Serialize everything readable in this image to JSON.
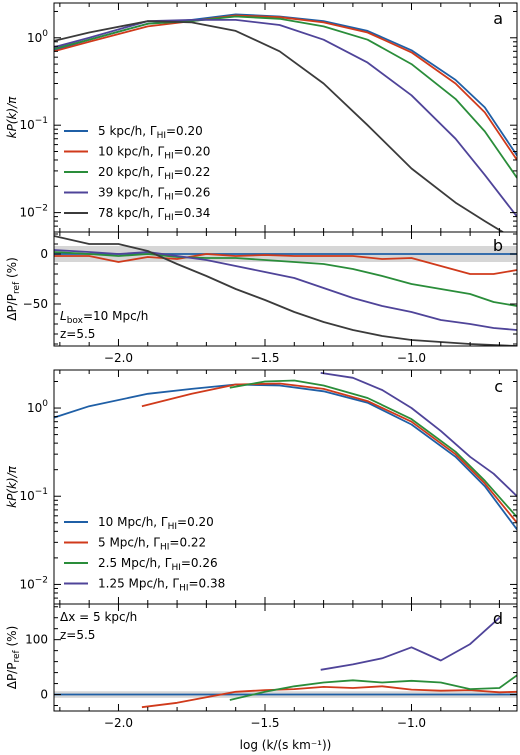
{
  "chart_data": [
    {
      "panel": "a",
      "type": "line",
      "ylabel": "kP(k)/π",
      "yscale": "log",
      "ylim": [
        0.006,
        2.5
      ],
      "xlim": [
        -2.22,
        -0.64
      ],
      "legend_loc": "lower-left",
      "series": [
        {
          "name": "5 kpc/h, ΓHI=0.20",
          "color": "#1f5fa6",
          "x": [
            -2.22,
            -2.1,
            -1.9,
            -1.75,
            -1.6,
            -1.45,
            -1.3,
            -1.15,
            -1.0,
            -0.85,
            -0.75,
            -0.64
          ],
          "y": [
            0.72,
            0.95,
            1.45,
            1.6,
            1.85,
            1.75,
            1.55,
            1.2,
            0.72,
            0.33,
            0.16,
            0.045
          ]
        },
        {
          "name": "10 kpc/h, ΓHI=0.20",
          "color": "#d03a1b",
          "x": [
            -2.22,
            -2.1,
            -1.9,
            -1.75,
            -1.6,
            -1.45,
            -1.3,
            -1.15,
            -1.0,
            -0.85,
            -0.75,
            -0.64
          ],
          "y": [
            0.7,
            0.9,
            1.35,
            1.55,
            1.8,
            1.72,
            1.5,
            1.15,
            0.68,
            0.3,
            0.14,
            0.04
          ]
        },
        {
          "name": "20 kpc/h, ΓHI=0.22",
          "color": "#2a8d3a",
          "x": [
            -2.22,
            -2.1,
            -1.9,
            -1.75,
            -1.6,
            -1.45,
            -1.3,
            -1.15,
            -1.0,
            -0.85,
            -0.75,
            -0.64
          ],
          "y": [
            0.75,
            0.95,
            1.45,
            1.55,
            1.75,
            1.65,
            1.35,
            0.95,
            0.5,
            0.2,
            0.085,
            0.025
          ]
        },
        {
          "name": "39 kpc/h, ΓHI=0.26",
          "color": "#4f4499",
          "x": [
            -2.22,
            -2.1,
            -1.9,
            -1.75,
            -1.6,
            -1.45,
            -1.3,
            -1.15,
            -1.0,
            -0.85,
            -0.75,
            -0.64
          ],
          "y": [
            0.78,
            1.0,
            1.55,
            1.6,
            1.6,
            1.4,
            0.95,
            0.52,
            0.22,
            0.07,
            0.027,
            0.009
          ]
        },
        {
          "name": "78 kpc/h, ΓHI=0.34",
          "color": "#3b3b3b",
          "x": [
            -2.22,
            -2.1,
            -1.9,
            -1.75,
            -1.6,
            -1.45,
            -1.3,
            -1.15,
            -1.0,
            -0.85,
            -0.75,
            -0.67
          ],
          "y": [
            0.92,
            1.15,
            1.55,
            1.5,
            1.2,
            0.7,
            0.3,
            0.1,
            0.032,
            0.013,
            0.008,
            0.0055
          ]
        }
      ]
    },
    {
      "panel": "b",
      "type": "line",
      "ylabel": "ΔP/Pref (%)",
      "ylim": [
        -92,
        22
      ],
      "yticks": [
        0,
        -50
      ],
      "xlim": [
        -2.22,
        -0.64
      ],
      "band": [
        -8,
        8
      ],
      "annotations": [
        "Lbox=10 Mpc/h",
        "z=5.5"
      ],
      "series": [
        {
          "color": "#1f5fa6",
          "x": [
            -2.22,
            -0.64
          ],
          "y": [
            0,
            0
          ]
        },
        {
          "color": "#d03a1b",
          "x": [
            -2.22,
            -2.1,
            -2.0,
            -1.9,
            -1.8,
            -1.7,
            -1.6,
            -1.5,
            -1.4,
            -1.3,
            -1.2,
            -1.1,
            -1.0,
            -0.9,
            -0.8,
            -0.72,
            -0.64
          ],
          "y": [
            -2,
            -2,
            -8,
            -3,
            -5,
            0,
            -2,
            -1,
            -2,
            -2,
            -2,
            -5,
            -4,
            -12,
            -20,
            -20,
            -16
          ]
        },
        {
          "color": "#2a8d3a",
          "x": [
            -2.22,
            -2.1,
            -2.0,
            -1.9,
            -1.8,
            -1.7,
            -1.6,
            -1.5,
            -1.4,
            -1.3,
            -1.2,
            -1.1,
            -1.0,
            -0.9,
            -0.8,
            -0.72,
            -0.64
          ],
          "y": [
            2,
            0,
            -2,
            0,
            -3,
            -4,
            -4,
            -6,
            -8,
            -10,
            -15,
            -22,
            -30,
            -35,
            -40,
            -48,
            -52
          ]
        },
        {
          "color": "#4f4499",
          "x": [
            -2.22,
            -2.1,
            -2.0,
            -1.9,
            -1.8,
            -1.7,
            -1.6,
            -1.5,
            -1.4,
            -1.3,
            -1.2,
            -1.1,
            -1.0,
            -0.9,
            -0.8,
            -0.72,
            -0.64
          ],
          "y": [
            4,
            2,
            0,
            2,
            -2,
            -6,
            -12,
            -18,
            -24,
            -34,
            -44,
            -52,
            -58,
            -66,
            -70,
            -74,
            -76
          ]
        },
        {
          "color": "#3b3b3b",
          "x": [
            -2.22,
            -2.1,
            -2.0,
            -1.9,
            -1.8,
            -1.7,
            -1.6,
            -1.5,
            -1.4,
            -1.3,
            -1.2,
            -1.1,
            -1.0,
            -0.9,
            -0.8,
            -0.72,
            -0.64
          ],
          "y": [
            18,
            10,
            10,
            3,
            -10,
            -22,
            -35,
            -46,
            -58,
            -68,
            -76,
            -82,
            -86,
            -88,
            -90,
            -91,
            -92
          ]
        }
      ]
    },
    {
      "panel": "c",
      "type": "line",
      "ylabel": "kP(k)/π",
      "yscale": "log",
      "ylim": [
        0.006,
        2.7
      ],
      "xlim": [
        -2.22,
        -0.64
      ],
      "legend_loc": "lower-left",
      "series": [
        {
          "name": "10 Mpc/h, ΓHI=0.20",
          "color": "#1f5fa6",
          "x": [
            -2.22,
            -2.1,
            -1.9,
            -1.75,
            -1.6,
            -1.45,
            -1.3,
            -1.15,
            -1.0,
            -0.85,
            -0.75,
            -0.64
          ],
          "y": [
            0.78,
            1.05,
            1.45,
            1.65,
            1.85,
            1.8,
            1.55,
            1.15,
            0.65,
            0.28,
            0.13,
            0.042
          ]
        },
        {
          "name": "5 Mpc/h, ΓHI=0.22",
          "color": "#d03a1b",
          "x": [
            -1.92,
            -1.75,
            -1.6,
            -1.45,
            -1.3,
            -1.15,
            -1.0,
            -0.85,
            -0.75,
            -0.64
          ],
          "y": [
            1.05,
            1.45,
            1.85,
            1.9,
            1.65,
            1.2,
            0.7,
            0.3,
            0.14,
            0.05
          ]
        },
        {
          "name": "2.5 Mpc/h, ΓHI=0.26",
          "color": "#2a8d3a",
          "x": [
            -1.62,
            -1.5,
            -1.4,
            -1.3,
            -1.15,
            -1.0,
            -0.85,
            -0.75,
            -0.64
          ],
          "y": [
            1.7,
            2.0,
            2.05,
            1.8,
            1.3,
            0.75,
            0.32,
            0.15,
            0.058
          ]
        },
        {
          "name": "1.25 Mpc/h, ΓHI=0.38",
          "color": "#4f4499",
          "x": [
            -1.31,
            -1.2,
            -1.1,
            -1.0,
            -0.9,
            -0.8,
            -0.72,
            -0.64
          ],
          "y": [
            2.5,
            2.2,
            1.6,
            1.0,
            0.55,
            0.28,
            0.18,
            0.1
          ]
        }
      ]
    },
    {
      "panel": "d",
      "type": "line",
      "ylabel": "ΔP/Pref (%)",
      "ylim": [
        -30,
        165
      ],
      "yticks": [
        0,
        100
      ],
      "xlim": [
        -2.22,
        -0.64
      ],
      "xlabel": "log (k/(s km⁻¹))",
      "xticks": [
        -2.0,
        -1.5,
        -1.0
      ],
      "band": [
        -6,
        6
      ],
      "annotations": [
        "Δx = 5 kpc/h",
        "z=5.5"
      ],
      "series": [
        {
          "color": "#1f5fa6",
          "x": [
            -2.22,
            -0.64
          ],
          "y": [
            0,
            0
          ]
        },
        {
          "color": "#d03a1b",
          "x": [
            -1.92,
            -1.8,
            -1.7,
            -1.6,
            -1.5,
            -1.4,
            -1.3,
            -1.2,
            -1.1,
            -1.0,
            -0.9,
            -0.8,
            -0.7,
            -0.64
          ],
          "y": [
            -23,
            -15,
            -5,
            5,
            8,
            10,
            14,
            12,
            15,
            9,
            7,
            8,
            4,
            5
          ]
        },
        {
          "color": "#2a8d3a",
          "x": [
            -1.62,
            -1.5,
            -1.4,
            -1.3,
            -1.2,
            -1.1,
            -1.0,
            -0.9,
            -0.8,
            -0.7,
            -0.64
          ],
          "y": [
            -10,
            5,
            15,
            22,
            26,
            22,
            25,
            22,
            10,
            12,
            35
          ]
        },
        {
          "color": "#4f4499",
          "x": [
            -1.31,
            -1.2,
            -1.1,
            -1.0,
            -0.9,
            -0.8,
            -0.7
          ],
          "y": [
            45,
            55,
            66,
            86,
            62,
            92,
            140
          ]
        }
      ]
    }
  ],
  "panels": {
    "a": {
      "letter": "a",
      "ylabel": "kP(k)/π",
      "yticklabels": {
        "ten0": "10",
        "ten0_exp": "0",
        "tenm1": "10",
        "tenm1_exp": "−1",
        "tenm2": "10",
        "tenm2_exp": "−2"
      },
      "legend": [
        "5 kpc/h, Γ",
        "10 kpc/h, Γ",
        "20 kpc/h, Γ",
        "39 kpc/h, Γ",
        "78 kpc/h, Γ"
      ],
      "legend_sub": "HI",
      "legend_val": [
        "=0.20",
        "=0.20",
        "=0.22",
        "=0.26",
        "=0.34"
      ]
    },
    "b": {
      "letter": "b",
      "ylabel_main": "ΔP/P",
      "ylabel_sub": "ref",
      "ylabel_tail": " (%)",
      "yticklabels": [
        "0",
        "−50"
      ],
      "annot1_main": "L",
      "annot1_sub": "box",
      "annot1_tail": "=10 Mpc/h",
      "annot2": "z=5.5",
      "xticklabels": [
        "−2.0",
        "−1.5",
        "−1.0"
      ]
    },
    "c": {
      "letter": "c",
      "ylabel": "kP(k)/π",
      "yticklabels": {
        "ten0": "10",
        "ten0_exp": "0",
        "tenm1": "10",
        "tenm1_exp": "−1",
        "tenm2": "10",
        "tenm2_exp": "−2"
      },
      "legend": [
        "10 Mpc/h, Γ",
        "5 Mpc/h, Γ",
        "2.5 Mpc/h, Γ",
        "1.25 Mpc/h, Γ"
      ],
      "legend_sub": "HI",
      "legend_val": [
        "=0.20",
        "=0.22",
        "=0.26",
        "=0.38"
      ]
    },
    "d": {
      "letter": "d",
      "ylabel_main": "ΔP/P",
      "ylabel_sub": "ref",
      "ylabel_tail": " (%)",
      "yticklabels": [
        "0",
        "100"
      ],
      "annot1": "Δx = 5 kpc/h",
      "annot2": "z=5.5",
      "xticklabels": [
        "−2.0",
        "−1.5",
        "−1.0"
      ],
      "xlabel": "log (k/(s km⁻¹))"
    }
  }
}
